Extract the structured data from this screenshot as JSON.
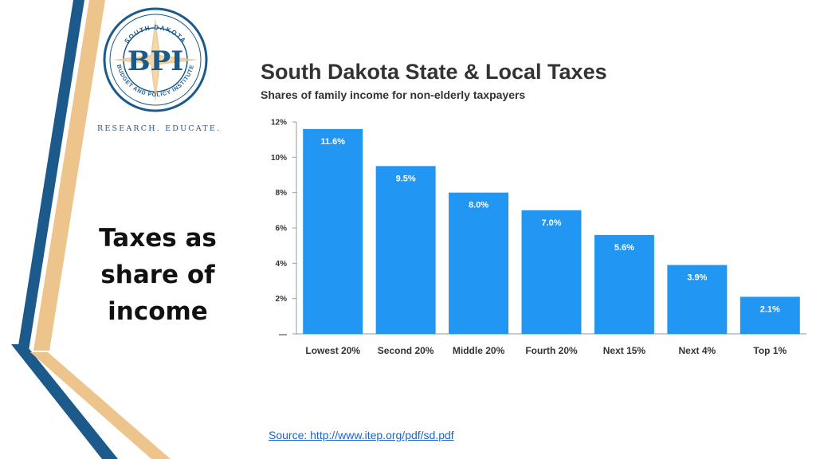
{
  "slide": {
    "title_lines": [
      "Taxes as",
      "share of",
      "income"
    ],
    "source": "Source:  http://www.itep.org/pdf/sd.pdf"
  },
  "logo": {
    "top_text": "SOUTH DAKOTA",
    "bottom_text": "BUDGET AND POLICY INSTITUTE",
    "initials": "BPI",
    "tagline": "RESEARCH. EDUCATE."
  },
  "colors": {
    "bar": "#2196f3",
    "navy": "#1b5a8a",
    "tan": "#ecc48c",
    "title": "#333333"
  },
  "chart_data": {
    "type": "bar",
    "title": "South Dakota State & Local Taxes",
    "subtitle": "Shares of family income for non-elderly taxpayers",
    "categories": [
      "Lowest 20%",
      "Second 20%",
      "Middle 20%",
      "Fourth 20%",
      "Next 15%",
      "Next 4%",
      "Top 1%"
    ],
    "values": [
      11.6,
      9.5,
      8.0,
      7.0,
      5.6,
      3.9,
      2.1
    ],
    "data_labels": [
      "11.6%",
      "9.5%",
      "8.0%",
      "7.0%",
      "5.6%",
      "3.9%",
      "2.1%"
    ],
    "y_ticks": [
      "12%",
      "10%",
      "8%",
      "6%",
      "4%",
      "2%",
      "—"
    ],
    "y_tick_values": [
      12,
      10,
      8,
      6,
      4,
      2,
      0
    ],
    "ylim": [
      0,
      12
    ],
    "grid": false,
    "legend": "none"
  }
}
